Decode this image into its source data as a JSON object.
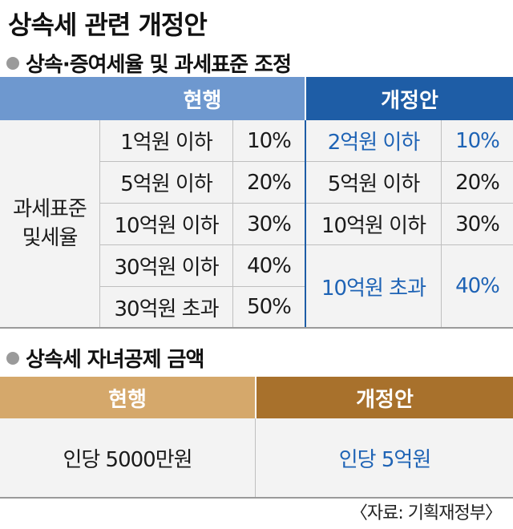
{
  "title": "상속세 관련 개정안",
  "section1": {
    "heading": "상속·증여세율 및 과세표준 조정",
    "header_current": "현행",
    "header_proposed": "개정안",
    "row_label": "과세표준\n및세율",
    "current": [
      {
        "bracket": "1억원 이하",
        "rate": "10%"
      },
      {
        "bracket": "5억원 이하",
        "rate": "20%"
      },
      {
        "bracket": "10억원 이하",
        "rate": "30%"
      },
      {
        "bracket": "30억원 이하",
        "rate": "40%"
      },
      {
        "bracket": "30억원 초과",
        "rate": "50%"
      }
    ],
    "proposed": [
      {
        "bracket": "2억원 이하",
        "rate": "10%",
        "highlight": true
      },
      {
        "bracket": "5억원 이하",
        "rate": "20%",
        "highlight": false
      },
      {
        "bracket": "10억원 이하",
        "rate": "30%",
        "highlight": false
      },
      {
        "bracket": "10억원 초과",
        "rate": "40%",
        "highlight": true
      }
    ]
  },
  "section2": {
    "heading": "상속세 자녀공제 금액",
    "header_current": "현행",
    "header_proposed": "개정안",
    "current_value": "인당 5000만원",
    "proposed_value": "인당 5억원"
  },
  "source": "〈자료: 기획재정부〉",
  "colors": {
    "blue_header_light": "#6e98cf",
    "blue_header_dark": "#1e5da6",
    "highlight_text": "#1e63b5",
    "gold_header_light": "#d5a86b",
    "gold_header_dark": "#a8712c"
  }
}
